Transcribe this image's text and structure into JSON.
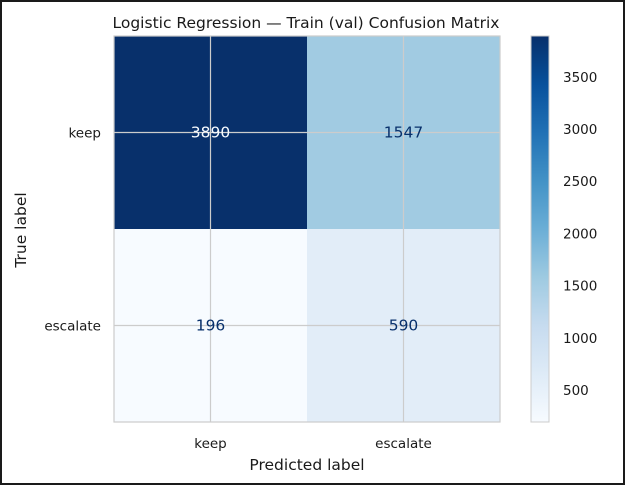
{
  "chart_data": {
    "type": "heatmap",
    "title": "Logistic Regression — Train (val) Confusion Matrix",
    "xlabel": "Predicted label",
    "ylabel": "True label",
    "x_categories": [
      "keep",
      "escalate"
    ],
    "y_categories": [
      "keep",
      "escalate"
    ],
    "values": [
      [
        3890,
        1547
      ],
      [
        196,
        590
      ]
    ],
    "cell_labels": [
      [
        "3890",
        "1547"
      ],
      [
        "196",
        "590"
      ]
    ],
    "colormap": "Blues",
    "colorbar": {
      "min": 196,
      "max": 3890,
      "ticks": [
        500,
        1000,
        1500,
        2000,
        2500,
        3000,
        3500
      ],
      "tick_labels": [
        "500",
        "1000",
        "1500",
        "2000",
        "2500",
        "3000",
        "3500"
      ]
    },
    "grid": true
  }
}
